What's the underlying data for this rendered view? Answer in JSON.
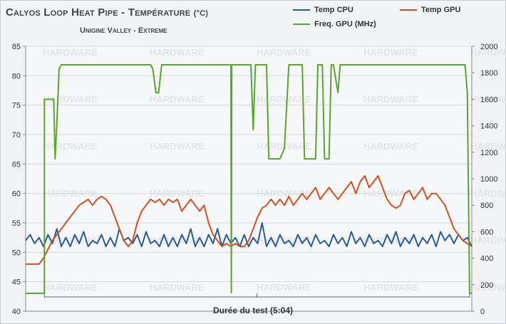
{
  "title": "Calyos Loop Heat Pipe - Température",
  "title_unit": "(°C)",
  "subtitle": "Unigine Valley - Extreme",
  "watermark_text": "HARDWARE",
  "colors": {
    "cpu": "#2a5b93",
    "gpu": "#d24f20",
    "freq": "#5aa52f",
    "grid": "#d6d9dd",
    "axis": "#888888",
    "text": "#333333"
  },
  "chart_data": {
    "type": "line",
    "title": "Calyos Loop Heat Pipe - Température (°C)",
    "subtitle": "Unigine Valley - Extreme",
    "xlabel": "Durée du test (5:04)",
    "x_range": [
      0,
      100
    ],
    "y_left": {
      "ylim": [
        40,
        85
      ],
      "ticks": [
        40,
        45,
        50,
        55,
        60,
        65,
        70,
        75,
        80,
        85
      ]
    },
    "y_right": {
      "ylim": [
        0,
        2000
      ],
      "ticks": [
        0,
        200,
        400,
        600,
        800,
        1000,
        1200,
        1400,
        1600,
        1800,
        2000
      ]
    },
    "grid": true,
    "legend_position": "top-right",
    "series": [
      {
        "name": "Temp CPU",
        "axis": "left",
        "color": "#2a5b93",
        "points": [
          [
            0,
            52
          ],
          [
            1,
            53
          ],
          [
            2,
            51.5
          ],
          [
            3,
            52.5
          ],
          [
            4,
            51
          ],
          [
            5,
            53
          ],
          [
            6,
            51.5
          ],
          [
            7,
            54
          ],
          [
            8,
            51
          ],
          [
            9,
            52.5
          ],
          [
            10,
            51
          ],
          [
            11,
            53
          ],
          [
            12,
            51.5
          ],
          [
            13,
            53.5
          ],
          [
            14,
            51
          ],
          [
            15,
            52
          ],
          [
            16,
            51.5
          ],
          [
            17,
            53
          ],
          [
            18,
            51
          ],
          [
            19,
            52.5
          ],
          [
            20,
            51
          ],
          [
            21,
            54
          ],
          [
            22,
            52
          ],
          [
            23,
            52.5
          ],
          [
            24,
            51.5
          ],
          [
            25,
            53
          ],
          [
            26,
            51
          ],
          [
            27,
            53.5
          ],
          [
            28,
            51.5
          ],
          [
            29,
            52
          ],
          [
            30,
            51
          ],
          [
            31,
            53
          ],
          [
            32,
            51
          ],
          [
            33,
            52.5
          ],
          [
            34,
            51
          ],
          [
            35,
            53
          ],
          [
            36,
            51.5
          ],
          [
            37,
            54
          ],
          [
            38,
            51
          ],
          [
            39,
            52.5
          ],
          [
            40,
            51
          ],
          [
            41,
            53
          ],
          [
            42,
            51.5
          ],
          [
            43,
            54
          ],
          [
            44,
            51
          ],
          [
            45,
            53
          ],
          [
            46,
            51.5
          ],
          [
            47,
            52.5
          ],
          [
            48,
            51
          ],
          [
            49,
            53
          ],
          [
            50,
            51
          ],
          [
            51,
            52.5
          ],
          [
            52,
            51.5
          ],
          [
            53,
            55
          ],
          [
            54,
            51
          ],
          [
            55,
            52.5
          ],
          [
            56,
            51
          ],
          [
            57,
            53
          ],
          [
            58,
            51.5
          ],
          [
            59,
            52
          ],
          [
            60,
            51
          ],
          [
            61,
            53
          ],
          [
            62,
            51.5
          ],
          [
            63,
            52.5
          ],
          [
            64,
            51
          ],
          [
            65,
            53
          ],
          [
            66,
            51.5
          ],
          [
            67,
            52
          ],
          [
            68,
            51
          ],
          [
            69,
            53
          ],
          [
            70,
            51.5
          ],
          [
            71,
            52.5
          ],
          [
            72,
            51
          ],
          [
            73,
            53.5
          ],
          [
            74,
            51.5
          ],
          [
            75,
            52.5
          ],
          [
            76,
            51
          ],
          [
            77,
            53
          ],
          [
            78,
            51.5
          ],
          [
            79,
            52
          ],
          [
            80,
            51
          ],
          [
            81,
            53
          ],
          [
            82,
            51.5
          ],
          [
            83,
            53.5
          ],
          [
            84,
            51
          ],
          [
            85,
            52.5
          ],
          [
            86,
            51.5
          ],
          [
            87,
            53
          ],
          [
            88,
            51
          ],
          [
            89,
            52.5
          ],
          [
            90,
            51.5
          ],
          [
            91,
            53
          ],
          [
            92,
            51
          ],
          [
            93,
            53.5
          ],
          [
            94,
            52
          ],
          [
            95,
            53
          ],
          [
            96,
            51.5
          ],
          [
            97,
            53
          ],
          [
            98,
            52
          ],
          [
            99,
            52.5
          ],
          [
            100,
            51
          ]
        ]
      },
      {
        "name": "Temp GPU",
        "axis": "left",
        "color": "#d24f20",
        "points": [
          [
            0,
            48
          ],
          [
            1,
            48
          ],
          [
            2,
            48
          ],
          [
            3,
            48
          ],
          [
            4,
            49
          ],
          [
            5,
            50.5
          ],
          [
            6,
            52
          ],
          [
            7,
            53
          ],
          [
            8,
            54
          ],
          [
            9,
            55
          ],
          [
            10,
            56
          ],
          [
            11,
            57
          ],
          [
            12,
            58
          ],
          [
            13,
            58.5
          ],
          [
            14,
            59
          ],
          [
            15,
            58
          ],
          [
            16,
            59
          ],
          [
            17,
            59.5
          ],
          [
            18,
            59
          ],
          [
            19,
            58
          ],
          [
            20,
            56
          ],
          [
            21,
            54
          ],
          [
            22,
            52
          ],
          [
            23,
            51
          ],
          [
            24,
            52
          ],
          [
            25,
            55
          ],
          [
            26,
            57
          ],
          [
            27,
            58
          ],
          [
            28,
            59
          ],
          [
            29,
            58.5
          ],
          [
            30,
            59
          ],
          [
            31,
            58
          ],
          [
            32,
            59
          ],
          [
            33,
            58.5
          ],
          [
            34,
            59
          ],
          [
            35,
            57
          ],
          [
            36,
            58
          ],
          [
            37,
            59
          ],
          [
            38,
            58
          ],
          [
            39,
            57
          ],
          [
            40,
            58
          ],
          [
            41,
            55
          ],
          [
            42,
            53
          ],
          [
            43,
            52
          ],
          [
            44,
            51
          ],
          [
            45,
            51.5
          ],
          [
            46,
            51
          ],
          [
            47,
            51.5
          ],
          [
            48,
            51
          ],
          [
            49,
            51
          ],
          [
            50,
            52
          ],
          [
            51,
            54
          ],
          [
            52,
            56
          ],
          [
            53,
            57.5
          ],
          [
            54,
            58
          ],
          [
            55,
            59
          ],
          [
            56,
            58
          ],
          [
            57,
            59
          ],
          [
            58,
            58
          ],
          [
            59,
            59.5
          ],
          [
            60,
            58
          ],
          [
            61,
            59
          ],
          [
            62,
            60
          ],
          [
            63,
            59
          ],
          [
            64,
            60
          ],
          [
            65,
            61
          ],
          [
            66,
            59
          ],
          [
            67,
            60
          ],
          [
            68,
            61
          ],
          [
            69,
            60
          ],
          [
            70,
            59
          ],
          [
            71,
            60
          ],
          [
            72,
            61
          ],
          [
            73,
            62
          ],
          [
            74,
            60
          ],
          [
            75,
            62
          ],
          [
            76,
            63
          ],
          [
            77,
            61
          ],
          [
            78,
            62
          ],
          [
            79,
            63
          ],
          [
            80,
            61
          ],
          [
            81,
            59
          ],
          [
            82,
            58
          ],
          [
            83,
            57.5
          ],
          [
            84,
            58
          ],
          [
            85,
            60
          ],
          [
            86,
            60.5
          ],
          [
            87,
            59
          ],
          [
            88,
            60
          ],
          [
            89,
            61
          ],
          [
            90,
            59
          ],
          [
            91,
            60
          ],
          [
            92,
            60
          ],
          [
            93,
            59
          ],
          [
            94,
            58
          ],
          [
            95,
            56
          ],
          [
            96,
            54
          ],
          [
            97,
            53
          ],
          [
            98,
            52
          ],
          [
            99,
            51.5
          ],
          [
            100,
            51
          ]
        ]
      },
      {
        "name": "Freq. GPU (MHz)",
        "axis": "right",
        "color": "#5aa52f",
        "points": [
          [
            0,
            135
          ],
          [
            4.2,
            135
          ],
          [
            4.2,
            1600
          ],
          [
            6.3,
            1600
          ],
          [
            6.6,
            1150
          ],
          [
            7,
            1420
          ],
          [
            7.5,
            1830
          ],
          [
            8,
            1860
          ],
          [
            28,
            1860
          ],
          [
            28.5,
            1830
          ],
          [
            29.2,
            1650
          ],
          [
            29.8,
            1650
          ],
          [
            30.5,
            1860
          ],
          [
            46,
            1860
          ],
          [
            46.1,
            140
          ],
          [
            46.2,
            1860
          ],
          [
            50.5,
            1860
          ],
          [
            51,
            1370
          ],
          [
            51.5,
            1860
          ],
          [
            54,
            1860
          ],
          [
            54.5,
            1150
          ],
          [
            57,
            1150
          ],
          [
            58,
            1230
          ],
          [
            59,
            1860
          ],
          [
            62,
            1860
          ],
          [
            62.5,
            1150
          ],
          [
            65,
            1150
          ],
          [
            65.5,
            1860
          ],
          [
            66.5,
            1860
          ],
          [
            67,
            1150
          ],
          [
            68,
            1150
          ],
          [
            68.5,
            1860
          ],
          [
            69,
            1860
          ],
          [
            70,
            1650
          ],
          [
            70.5,
            1860
          ],
          [
            98.5,
            1860
          ],
          [
            99,
            1650
          ],
          [
            99.5,
            135
          ],
          [
            100,
            135
          ]
        ]
      }
    ],
    "left_axis_title": "",
    "right_axis_title": ""
  }
}
